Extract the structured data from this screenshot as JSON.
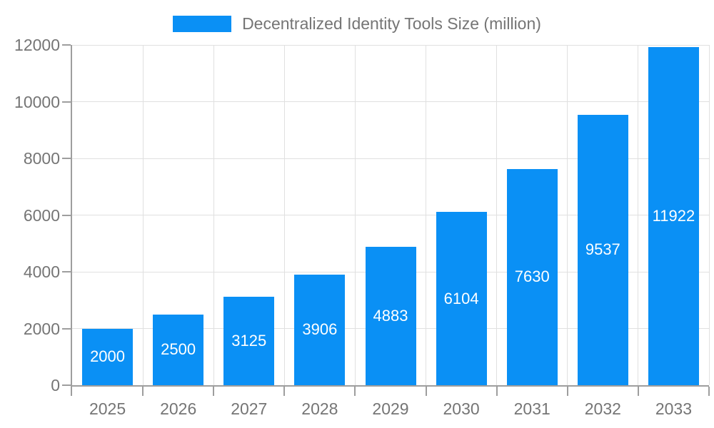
{
  "chart_data": {
    "type": "bar",
    "title": "Decentralized Identity Tools Size (million)",
    "legend": {
      "label": "Decentralized Identity Tools Size (million)",
      "position": "top-center"
    },
    "categories": [
      "2025",
      "2026",
      "2027",
      "2028",
      "2029",
      "2030",
      "2031",
      "2032",
      "2033"
    ],
    "values": [
      2000,
      2500,
      3125,
      3906,
      4883,
      6104,
      7630,
      9537,
      11922
    ],
    "value_labels": {
      "position": "inside-center",
      "color": "#ffffff"
    },
    "xlabel": "",
    "ylabel": "",
    "ylim": [
      0,
      12000
    ],
    "yticks": [
      0,
      2000,
      4000,
      6000,
      8000,
      10000,
      12000
    ],
    "grid": true,
    "colors": {
      "bar": "#0a90f5",
      "grid": "#e0e0e0",
      "axis": "#9e9e9e",
      "tick_text": "#757575",
      "background": "#ffffff"
    }
  }
}
